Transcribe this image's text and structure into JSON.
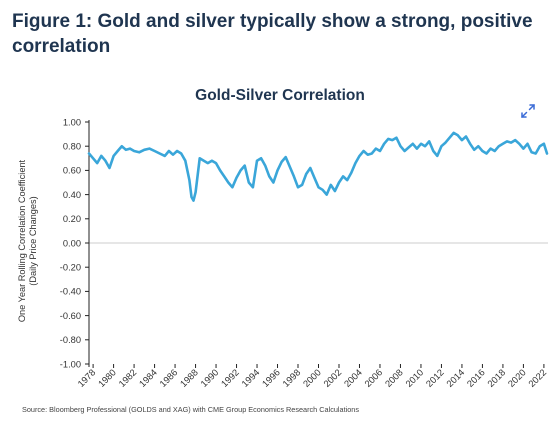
{
  "figure": {
    "title": "Figure 1: Gold and silver typically show a strong, positive correlation",
    "source": "Source: Bloomberg Professional (GOLDS and XAG) with CME Group Economics Research Calculations"
  },
  "colors": {
    "line": "#3aa6d9",
    "title": "#1f3550",
    "axis": "#222222",
    "grid": "#cccccc"
  },
  "icons": {
    "expand": "expand-arrows-icon"
  },
  "chart_data": {
    "type": "line",
    "title": "Gold-Silver Correlation",
    "ylabel_lines": [
      "One Year Rolling Correlation Coefficient",
      "(Daily Price Changes)"
    ],
    "xlabel": "",
    "ylim": [
      -1.0,
      1.0
    ],
    "xlim": [
      1977.6,
      2022.4
    ],
    "x_ticks": [
      "1978",
      "1980",
      "1982",
      "1984",
      "1986",
      "1988",
      "1990",
      "1992",
      "1994",
      "1996",
      "1998",
      "2000",
      "2002",
      "2004",
      "2006",
      "2008",
      "2010",
      "2012",
      "2014",
      "2016",
      "2018",
      "2020",
      "2022"
    ],
    "y_ticks": [
      "1.00",
      "0.80",
      "0.60",
      "0.40",
      "0.20",
      "0.00",
      "-0.20",
      "-0.40",
      "-0.60",
      "-0.80",
      "-1.00"
    ],
    "grid": false,
    "series": [
      {
        "x": [
          1977.6,
          1978.0,
          1978.4,
          1978.8,
          1979.2,
          1979.6,
          1980.0,
          1980.4,
          1980.8,
          1981.2,
          1981.6,
          1982.0,
          1982.5,
          1983.0,
          1983.5,
          1984.0,
          1984.5,
          1985.0,
          1985.4,
          1985.8,
          1986.2,
          1986.6,
          1987.0,
          1987.4,
          1987.6,
          1987.8,
          1988.0,
          1988.4,
          1988.8,
          1989.2,
          1989.6,
          1990.0,
          1990.4,
          1990.8,
          1991.2,
          1991.6,
          1992.0,
          1992.4,
          1992.8,
          1993.2,
          1993.6,
          1994.0,
          1994.4,
          1994.8,
          1995.2,
          1995.6,
          1996.0,
          1996.4,
          1996.8,
          1997.2,
          1997.6,
          1998.0,
          1998.4,
          1998.8,
          1999.2,
          1999.6,
          2000.0,
          2000.4,
          2000.8,
          2001.2,
          2001.6,
          2002.0,
          2002.4,
          2002.8,
          2003.2,
          2003.6,
          2004.0,
          2004.4,
          2004.8,
          2005.2,
          2005.6,
          2006.0,
          2006.4,
          2006.8,
          2007.2,
          2007.6,
          2008.0,
          2008.4,
          2008.8,
          2009.2,
          2009.6,
          2010.0,
          2010.4,
          2010.8,
          2011.2,
          2011.6,
          2012.0,
          2012.4,
          2012.8,
          2013.2,
          2013.6,
          2014.0,
          2014.4,
          2014.8,
          2015.2,
          2015.6,
          2016.0,
          2016.4,
          2016.8,
          2017.2,
          2017.6,
          2018.0,
          2018.4,
          2018.8,
          2019.2,
          2019.6,
          2020.0,
          2020.4,
          2020.8,
          2021.2,
          2021.6,
          2022.0,
          2022.3
        ],
        "y": [
          0.74,
          0.7,
          0.66,
          0.72,
          0.68,
          0.62,
          0.72,
          0.76,
          0.8,
          0.77,
          0.78,
          0.76,
          0.75,
          0.77,
          0.78,
          0.76,
          0.74,
          0.72,
          0.76,
          0.73,
          0.76,
          0.74,
          0.68,
          0.52,
          0.38,
          0.35,
          0.42,
          0.7,
          0.68,
          0.66,
          0.68,
          0.66,
          0.6,
          0.55,
          0.5,
          0.46,
          0.54,
          0.6,
          0.64,
          0.5,
          0.46,
          0.68,
          0.7,
          0.64,
          0.55,
          0.5,
          0.6,
          0.67,
          0.71,
          0.63,
          0.55,
          0.46,
          0.48,
          0.57,
          0.62,
          0.54,
          0.46,
          0.44,
          0.4,
          0.48,
          0.43,
          0.5,
          0.55,
          0.52,
          0.58,
          0.66,
          0.72,
          0.76,
          0.73,
          0.74,
          0.78,
          0.76,
          0.82,
          0.86,
          0.85,
          0.87,
          0.8,
          0.76,
          0.79,
          0.82,
          0.78,
          0.82,
          0.8,
          0.84,
          0.76,
          0.72,
          0.8,
          0.83,
          0.87,
          0.91,
          0.89,
          0.85,
          0.88,
          0.82,
          0.77,
          0.8,
          0.76,
          0.74,
          0.78,
          0.76,
          0.8,
          0.82,
          0.84,
          0.83,
          0.85,
          0.82,
          0.78,
          0.82,
          0.75,
          0.74,
          0.8,
          0.82,
          0.74
        ]
      }
    ]
  }
}
